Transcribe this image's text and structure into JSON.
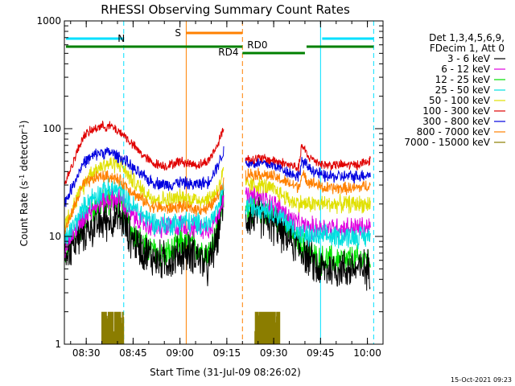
{
  "colors": {
    "3-6": "#000000",
    "6-12": "#e000e0",
    "12-25": "#00e000",
    "25-50": "#00e0e0",
    "50-100": "#e0e000",
    "100-300": "#e00000",
    "300-800": "#0000e0",
    "800-7000": "#ff8000",
    "7000-15000": "#8b7d00",
    "status_green": "#008000",
    "night_cyan": "#00e0ff",
    "saa_orange": "#ff8000"
  },
  "chart_data": {
    "type": "line",
    "title": "RHESSI Observing Summary Count Rates",
    "xlabel": "Start Time (31-Jul-09 08:26:02)",
    "ylabel_parts": [
      "Count Rate (s",
      "-1",
      " detector",
      "-1",
      ")"
    ],
    "yscale": "log",
    "ylim": [
      1,
      1000
    ],
    "xlim_minutes": [
      -3,
      99
    ],
    "x_ticks": [
      {
        "m": 4,
        "label": "08:30"
      },
      {
        "m": 19,
        "label": "08:45"
      },
      {
        "m": 34,
        "label": "09:00"
      },
      {
        "m": 49,
        "label": "09:15"
      },
      {
        "m": 64,
        "label": "09:30"
      },
      {
        "m": 79,
        "label": "09:45"
      },
      {
        "m": 94,
        "label": "10:00"
      }
    ],
    "y_ticks": [
      {
        "v": 1,
        "label": "1"
      },
      {
        "v": 10,
        "label": "10"
      },
      {
        "v": 100,
        "label": "100"
      },
      {
        "v": 1000,
        "label": "1000"
      }
    ],
    "legend_header": [
      "Det 1,3,4,5,6,9,",
      "FDecim 1, Att 0"
    ],
    "legend_position": "right",
    "series": [
      {
        "key": "3-6",
        "name": "3 - 6 keV",
        "seg1": [
          [
            -3,
            7
          ],
          [
            5,
            12
          ],
          [
            10,
            14
          ],
          [
            15,
            15
          ],
          [
            18,
            10
          ],
          [
            23,
            7
          ],
          [
            27,
            6
          ],
          [
            31,
            6
          ],
          [
            35,
            7
          ],
          [
            39,
            7
          ],
          [
            43,
            5
          ],
          [
            46,
            10
          ],
          [
            48,
            22
          ]
        ],
        "seg2": [
          [
            55,
            15
          ],
          [
            60,
            15
          ],
          [
            65,
            12
          ],
          [
            70,
            9
          ],
          [
            74,
            7
          ],
          [
            78,
            5
          ],
          [
            85,
            5
          ],
          [
            95,
            5
          ]
        ]
      },
      {
        "key": "6-12",
        "name": "6 - 12 keV",
        "seg1": [
          [
            -3,
            8
          ],
          [
            5,
            18
          ],
          [
            10,
            22
          ],
          [
            15,
            22
          ],
          [
            18,
            16
          ],
          [
            23,
            13
          ],
          [
            27,
            12
          ],
          [
            31,
            12
          ],
          [
            35,
            13
          ],
          [
            39,
            12
          ],
          [
            43,
            12
          ],
          [
            46,
            15
          ],
          [
            48,
            25
          ]
        ],
        "seg2": [
          [
            55,
            23
          ],
          [
            60,
            23
          ],
          [
            65,
            19
          ],
          [
            70,
            14
          ],
          [
            74,
            12
          ],
          [
            78,
            12
          ],
          [
            85,
            12
          ],
          [
            95,
            12
          ]
        ]
      },
      {
        "key": "12-25",
        "name": "12 - 25 keV",
        "seg1": [
          [
            -3,
            7
          ],
          [
            5,
            17
          ],
          [
            10,
            21
          ],
          [
            15,
            21
          ],
          [
            18,
            12
          ],
          [
            23,
            8
          ],
          [
            27,
            7
          ],
          [
            31,
            7
          ],
          [
            35,
            9
          ],
          [
            39,
            8
          ],
          [
            43,
            7
          ],
          [
            46,
            12
          ],
          [
            48,
            22
          ]
        ],
        "seg2": [
          [
            55,
            18
          ],
          [
            60,
            18
          ],
          [
            65,
            15
          ],
          [
            70,
            10
          ],
          [
            74,
            8
          ],
          [
            78,
            6
          ],
          [
            85,
            6
          ],
          [
            95,
            6
          ]
        ]
      },
      {
        "key": "25-50",
        "name": "25 - 50 keV",
        "seg1": [
          [
            -3,
            9
          ],
          [
            5,
            22
          ],
          [
            10,
            27
          ],
          [
            15,
            27
          ],
          [
            18,
            20
          ],
          [
            23,
            15
          ],
          [
            27,
            13
          ],
          [
            31,
            13
          ],
          [
            35,
            14
          ],
          [
            39,
            13
          ],
          [
            43,
            13
          ],
          [
            46,
            17
          ],
          [
            48,
            28
          ]
        ],
        "seg2": [
          [
            55,
            19
          ],
          [
            60,
            19
          ],
          [
            65,
            16
          ],
          [
            70,
            12
          ],
          [
            74,
            10
          ],
          [
            78,
            10
          ],
          [
            85,
            10
          ],
          [
            95,
            10
          ]
        ]
      },
      {
        "key": "50-100",
        "name": "50 - 100 keV",
        "seg1": [
          [
            -3,
            13
          ],
          [
            5,
            38
          ],
          [
            10,
            47
          ],
          [
            15,
            47
          ],
          [
            18,
            35
          ],
          [
            23,
            25
          ],
          [
            27,
            22
          ],
          [
            31,
            22
          ],
          [
            35,
            23
          ],
          [
            39,
            22
          ],
          [
            43,
            22
          ],
          [
            46,
            27
          ],
          [
            48,
            40
          ]
        ],
        "seg2": [
          [
            55,
            30
          ],
          [
            60,
            30
          ],
          [
            65,
            26
          ],
          [
            70,
            21
          ],
          [
            74,
            20
          ],
          [
            78,
            20
          ],
          [
            85,
            20
          ],
          [
            95,
            20
          ]
        ]
      },
      {
        "key": "100-300",
        "name": "100 - 300 keV",
        "seg1": [
          [
            -3,
            30
          ],
          [
            3,
            85
          ],
          [
            8,
            105
          ],
          [
            12,
            105
          ],
          [
            16,
            88
          ],
          [
            20,
            65
          ],
          [
            25,
            48
          ],
          [
            30,
            45
          ],
          [
            34,
            50
          ],
          [
            36,
            48
          ],
          [
            40,
            46
          ],
          [
            43,
            50
          ],
          [
            46,
            70
          ],
          [
            48,
            105
          ]
        ],
        "seg2": [
          [
            55,
            52
          ],
          [
            60,
            53
          ],
          [
            65,
            50
          ],
          [
            70,
            45
          ],
          [
            72,
            43
          ],
          [
            73,
            70
          ],
          [
            75,
            55
          ],
          [
            80,
            46
          ],
          [
            90,
            46
          ],
          [
            95,
            50
          ]
        ]
      },
      {
        "key": "300-800",
        "name": "300 - 800 keV",
        "seg1": [
          [
            -3,
            20
          ],
          [
            3,
            48
          ],
          [
            8,
            60
          ],
          [
            12,
            60
          ],
          [
            16,
            52
          ],
          [
            20,
            40
          ],
          [
            25,
            32
          ],
          [
            30,
            30
          ],
          [
            34,
            32
          ],
          [
            38,
            30
          ],
          [
            43,
            32
          ],
          [
            46,
            45
          ],
          [
            48,
            62
          ]
        ],
        "seg2": [
          [
            55,
            48
          ],
          [
            60,
            48
          ],
          [
            65,
            45
          ],
          [
            70,
            38
          ],
          [
            72,
            36
          ],
          [
            73,
            50
          ],
          [
            75,
            44
          ],
          [
            80,
            36
          ],
          [
            90,
            36
          ],
          [
            95,
            38
          ]
        ]
      },
      {
        "key": "800-7000",
        "name": "800 - 7000 keV",
        "seg1": [
          [
            -3,
            11
          ],
          [
            3,
            30
          ],
          [
            8,
            36
          ],
          [
            12,
            36
          ],
          [
            16,
            31
          ],
          [
            20,
            24
          ],
          [
            25,
            19
          ],
          [
            30,
            18
          ],
          [
            34,
            19
          ],
          [
            38,
            18
          ],
          [
            43,
            18
          ],
          [
            46,
            23
          ],
          [
            48,
            33
          ]
        ],
        "seg2": [
          [
            55,
            38
          ],
          [
            60,
            38
          ],
          [
            65,
            35
          ],
          [
            70,
            30
          ],
          [
            72,
            29
          ],
          [
            73,
            37
          ],
          [
            75,
            33
          ],
          [
            80,
            28
          ],
          [
            90,
            28
          ],
          [
            95,
            30
          ]
        ]
      },
      {
        "key": "7000-15000",
        "name": "7000 - 15000 keV",
        "segs": [
          [
            9,
            16
          ],
          [
            58,
            66
          ]
        ],
        "peak": 2.0
      }
    ],
    "annotations": {
      "night_label": "N",
      "saa_label": "S",
      "rd0_label": "RD0",
      "rd4_label": "RD4",
      "night_lines_solid": [
        -3,
        79
      ],
      "night_lines_dashed": [
        16,
        96
      ],
      "saa_line_solid": 36,
      "saa_line_dashed": 54,
      "night_bars": [
        [
          -3,
          16
        ],
        [
          79,
          96
        ]
      ],
      "saa_bar": [
        36,
        54
      ],
      "rd0_bars": [
        [
          -3,
          54
        ],
        [
          74,
          96
        ]
      ],
      "rd4_bar": [
        54,
        74
      ]
    }
  },
  "footer": {
    "timestamp": "15-Oct-2021 09:23"
  }
}
